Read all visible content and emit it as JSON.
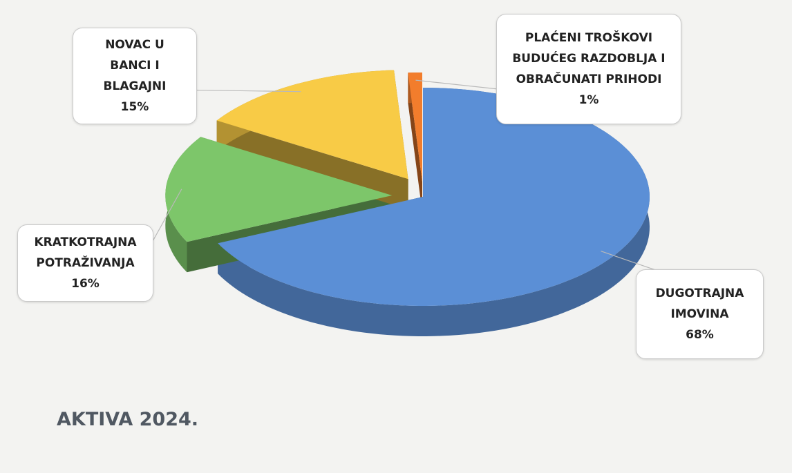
{
  "chart_data": {
    "type": "pie",
    "title": "AKTIVA 2024.",
    "categories": [
      "DUGOTRAJNA IMOVINA",
      "KRATKOTRAJNA POTRAŽIVANJA",
      "NOVAC U BANCI I BLAGAJNI",
      "PLAĆENI TROŠKOVI BUDUĆEG RAZDOBLJA I OBRAČUNATI PRIHODI"
    ],
    "values": [
      68,
      16,
      15,
      1
    ],
    "value_labels": [
      "68%",
      "16%",
      "15%",
      "1%"
    ],
    "colors": [
      "#5b8fd6",
      "#7dc66a",
      "#f8cb46",
      "#f27d2c"
    ]
  }
}
